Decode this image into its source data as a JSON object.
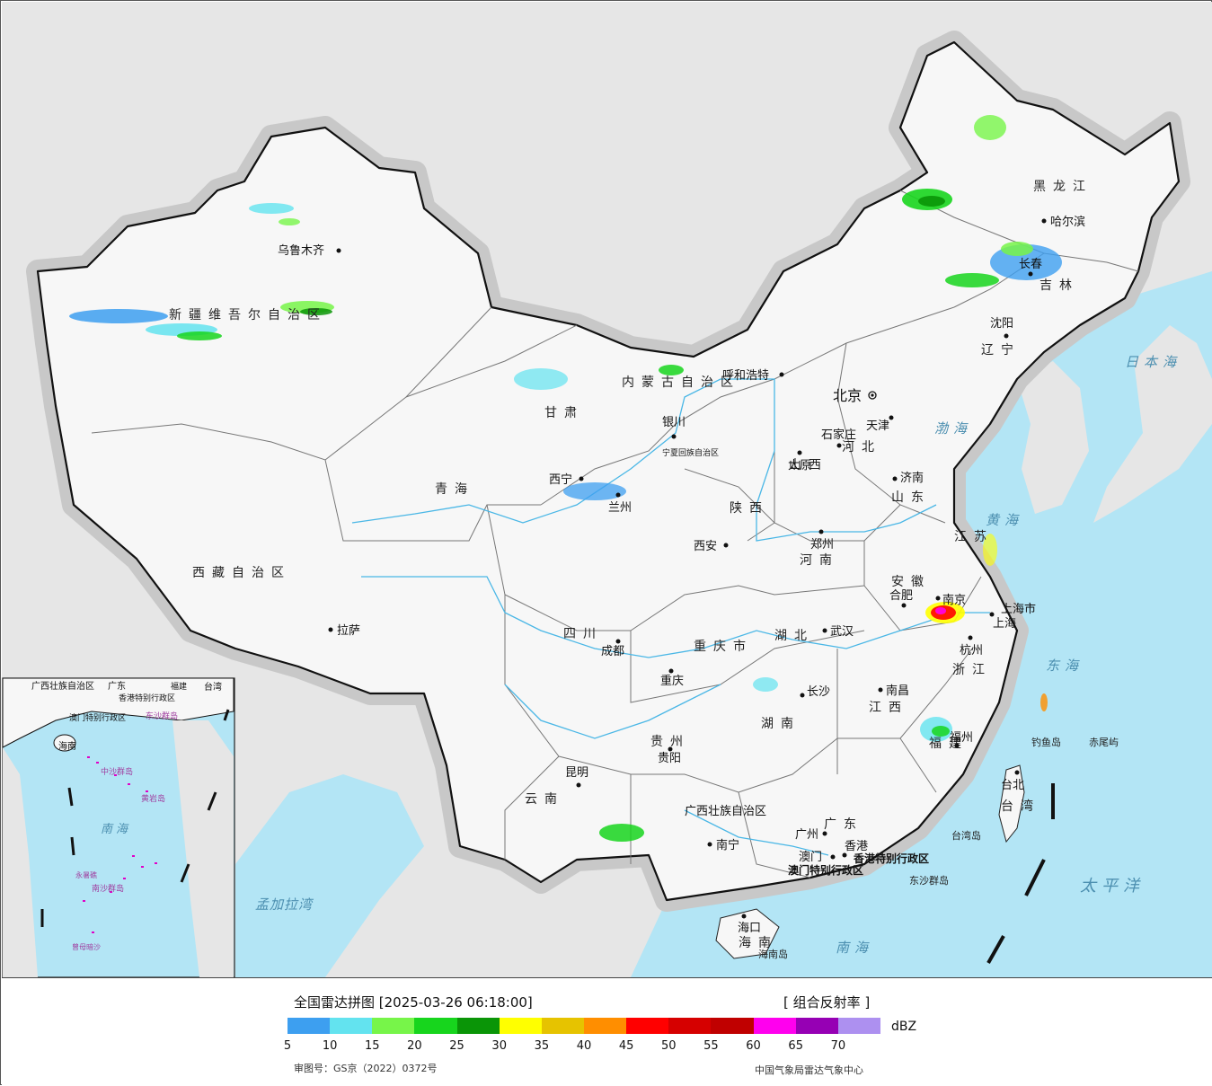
{
  "map": {
    "provinces": [
      {
        "name": "新疆维吾尔自治区"
      },
      {
        "name": "西藏自治区"
      },
      {
        "name": "青海"
      },
      {
        "name": "甘肃"
      },
      {
        "name": "内蒙古自治区"
      },
      {
        "name": "黑龙江"
      },
      {
        "name": "吉林"
      },
      {
        "name": "辽宁"
      },
      {
        "name": "河北"
      },
      {
        "name": "山西"
      },
      {
        "name": "陕西"
      },
      {
        "name": "山东"
      },
      {
        "name": "河南"
      },
      {
        "name": "江苏"
      },
      {
        "name": "安徽"
      },
      {
        "name": "湖北"
      },
      {
        "name": "四川"
      },
      {
        "name": "重庆市"
      },
      {
        "name": "浙江"
      },
      {
        "name": "江西"
      },
      {
        "name": "湖南"
      },
      {
        "name": "贵州"
      },
      {
        "name": "云南"
      },
      {
        "name": "广西壮族自治区"
      },
      {
        "name": "广东"
      },
      {
        "name": "福建"
      },
      {
        "name": "台湾"
      },
      {
        "name": "海南"
      },
      {
        "name": "宁夏回族自治区"
      },
      {
        "name": "上海市"
      }
    ],
    "cities": [
      "乌鲁木齐",
      "拉萨",
      "西宁",
      "兰州",
      "银川",
      "呼和浩特",
      "哈尔滨",
      "长春",
      "沈阳",
      "北京",
      "天津",
      "石家庄",
      "太原",
      "济南",
      "郑州",
      "西安",
      "南京",
      "合肥",
      "上海",
      "杭州",
      "武汉",
      "成都",
      "重庆",
      "南昌",
      "长沙",
      "福州",
      "台北",
      "贵阳",
      "昆明",
      "南宁",
      "广州",
      "澳门",
      "香港",
      "海口"
    ],
    "special_regions": [
      "香港特别行政区",
      "澳门特别行政区"
    ],
    "seas": [
      "日本海",
      "渤海",
      "黄海",
      "东海",
      "太平洋",
      "南海",
      "孟加拉湾"
    ],
    "islands": [
      "钓鱼岛",
      "赤尾屿",
      "台湾岛",
      "东沙群岛",
      "海南岛"
    ],
    "inset_labels": [
      "广西壮族自治区",
      "广东",
      "福建",
      "台湾",
      "香港特别行政区",
      "澳门特别行政区",
      "东沙群岛",
      "海南",
      "中沙群岛",
      "黄岩岛",
      "南海",
      "永暑礁",
      "南沙群岛",
      "曾母暗沙"
    ]
  },
  "legend": {
    "title": "全国雷达拼图 [2025-03-26 06:18:00]",
    "product": "[ 组合反射率 ]",
    "unit": "dBZ",
    "scale": [
      {
        "dbz": 5,
        "color": "#3d9ff0"
      },
      {
        "dbz": 10,
        "color": "#63e3ef"
      },
      {
        "dbz": 15,
        "color": "#77f549"
      },
      {
        "dbz": 20,
        "color": "#17d51d"
      },
      {
        "dbz": 25,
        "color": "#0a9507"
      },
      {
        "dbz": 30,
        "color": "#ffff00"
      },
      {
        "dbz": 35,
        "color": "#e6c300"
      },
      {
        "dbz": 40,
        "color": "#ff8e00"
      },
      {
        "dbz": 45,
        "color": "#ff0000"
      },
      {
        "dbz": 50,
        "color": "#d60000"
      },
      {
        "dbz": 55,
        "color": "#c00000"
      },
      {
        "dbz": 60,
        "color": "#ff00ee"
      },
      {
        "dbz": 65,
        "color": "#9600b4"
      },
      {
        "dbz": 70,
        "color": "#ad90f0"
      }
    ],
    "approval": "审图号：GS京（2022）0372号",
    "credit": "中国气象局雷达气象中心"
  }
}
